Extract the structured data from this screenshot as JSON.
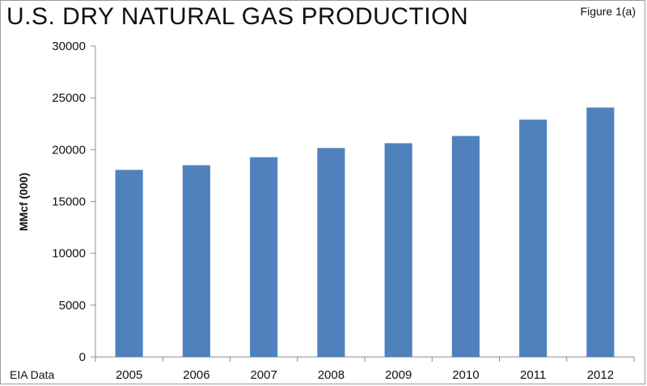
{
  "title": "U.S. DRY NATURAL GAS PRODUCTION",
  "figure_label": "Figure 1(a)",
  "source_note": "EIA Data",
  "colors": {
    "bar": "#4f81bd",
    "axis": "#8c8c8c"
  },
  "chart_data": {
    "type": "bar",
    "title": "U.S. DRY NATURAL GAS PRODUCTION",
    "categories": [
      "2005",
      "2006",
      "2007",
      "2008",
      "2009",
      "2010",
      "2011",
      "2012"
    ],
    "values": [
      18050,
      18500,
      19270,
      20160,
      20620,
      21320,
      22900,
      24060
    ],
    "xlabel": "",
    "ylabel": "MMcf (000)",
    "ylim": [
      0,
      30000
    ],
    "yticks": [
      0,
      5000,
      10000,
      15000,
      20000,
      25000,
      30000
    ],
    "ytick_labels": [
      "0",
      "5000",
      "10000",
      "15000",
      "20000",
      "25000",
      "30000"
    ],
    "grid": false,
    "legend": "none"
  }
}
